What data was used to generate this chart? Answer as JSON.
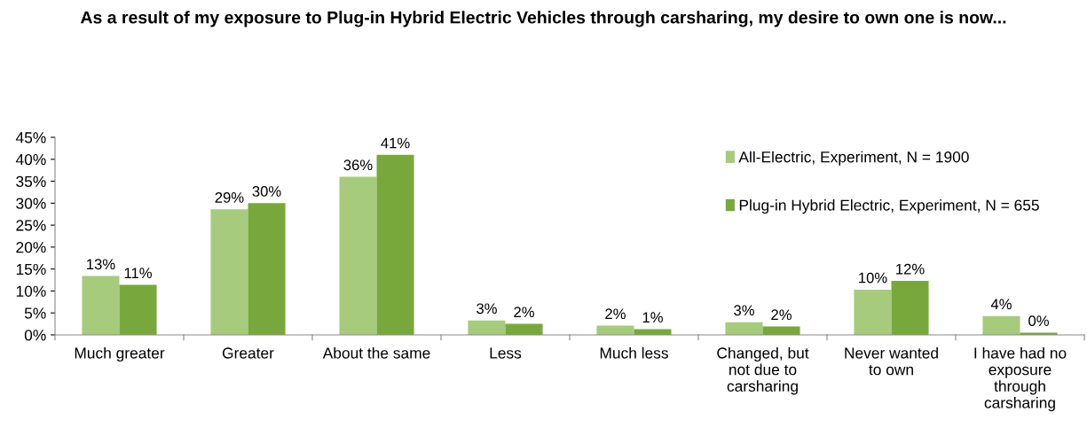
{
  "chart_data": {
    "type": "bar",
    "title": "As a result of my exposure to Plug-in Hybrid Electric Vehicles through carsharing, my desire to own one is now...",
    "categories": [
      "Much greater",
      "Greater",
      "About the same",
      "Less",
      "Much less",
      "Changed, but\nnot due to\ncarsharing",
      "Never wanted\nto own",
      "I have had no\nexposure\nthrough\ncarsharing"
    ],
    "series": [
      {
        "name": "All-Electric, Experiment, N = 1900",
        "color": "#a6cb7c",
        "values": [
          13.4,
          28.6,
          36,
          3.3,
          2.1,
          2.9,
          10.3,
          4.3
        ],
        "value_labels": [
          "13%",
          "29%",
          "36%",
          "3%",
          "2%",
          "3%",
          "10%",
          "4%"
        ]
      },
      {
        "name": "Plug-in Hybrid Electric, Experiment, N = 655",
        "color": "#78a83c",
        "values": [
          11.4,
          30,
          41,
          2.5,
          1.3,
          1.9,
          12.3,
          0.5
        ],
        "value_labels": [
          "11%",
          "30%",
          "41%",
          "2%",
          "1%",
          "2%",
          "12%",
          "0%"
        ]
      }
    ],
    "ylim": [
      0,
      45
    ],
    "yticks": [
      {
        "value": 0,
        "label": "0%"
      },
      {
        "value": 5,
        "label": "5%"
      },
      {
        "value": 10,
        "label": "10%"
      },
      {
        "value": 15,
        "label": "15%"
      },
      {
        "value": 20,
        "label": "20%"
      },
      {
        "value": 25,
        "label": "25%"
      },
      {
        "value": 30,
        "label": "30%"
      },
      {
        "value": 35,
        "label": "35%"
      },
      {
        "value": 40,
        "label": "40%"
      },
      {
        "value": 45,
        "label": "45%"
      }
    ],
    "grid": false,
    "legend": "top right"
  }
}
